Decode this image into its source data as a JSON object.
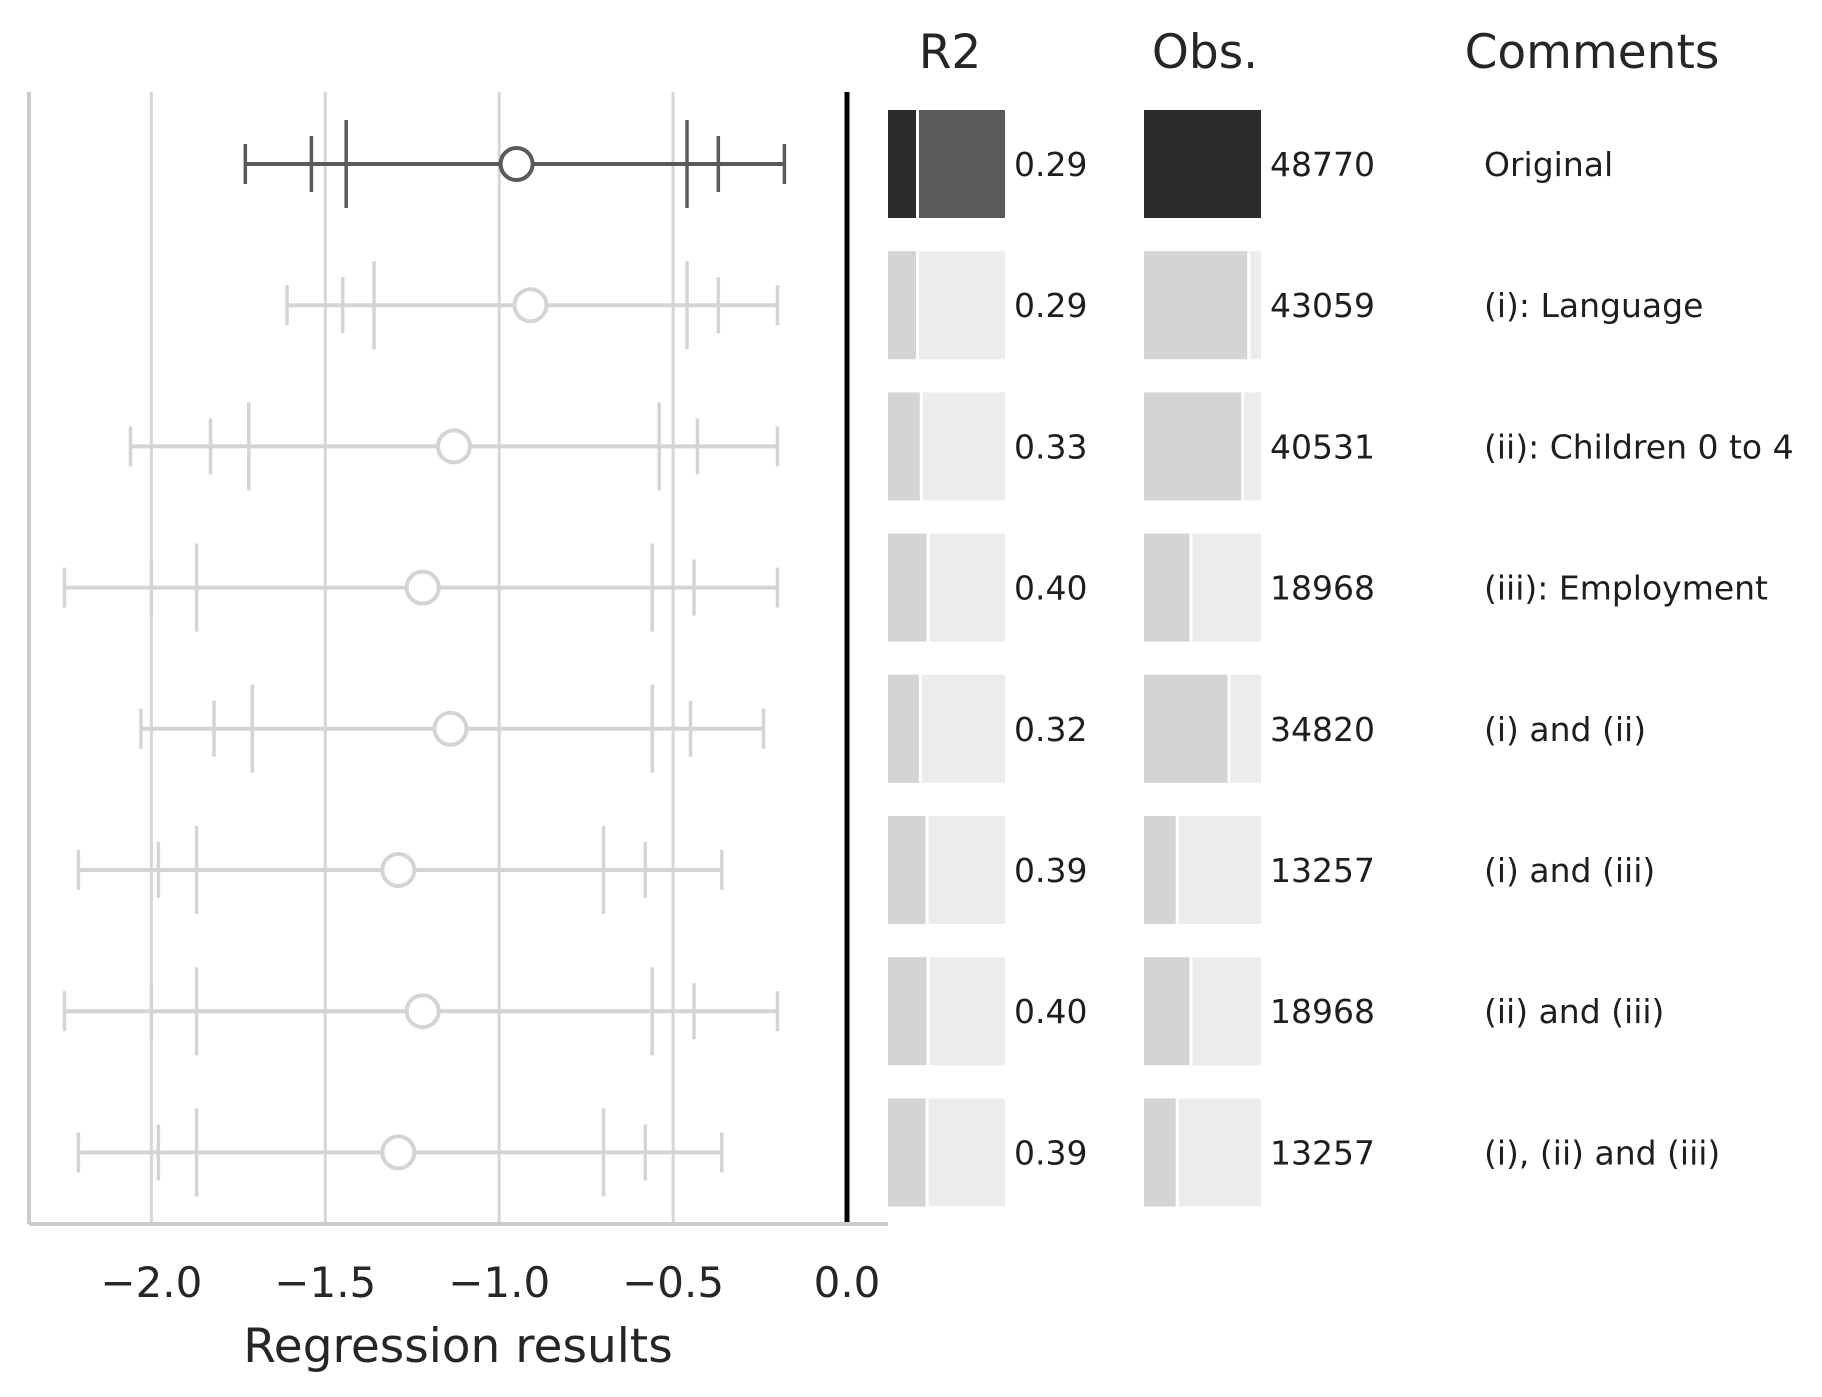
{
  "chart_data": {
    "type": "forest",
    "xlabel": "Regression results",
    "xlim": [
      -2.4,
      0.12
    ],
    "xticks": [
      -2.0,
      -1.5,
      -1.0,
      -0.5,
      0.0
    ],
    "xtick_labels": [
      "−2.0",
      "−1.5",
      "−1.0",
      "−0.5",
      "0.0"
    ],
    "grid": "vertical",
    "reference_line": 0.0,
    "column_headers": {
      "r2": "R2",
      "obs": "Obs.",
      "comments": "Comments"
    },
    "r2_max": 0.4,
    "obs_max": 48770,
    "highlight_color": "#5a5a5a",
    "highlight_dark": "#2b2b2b",
    "muted_color": "#d4d4d4",
    "muted_light": "#ececec",
    "rows": [
      {
        "estimate": -0.95,
        "ci90": [
          -1.44,
          -0.46
        ],
        "ci95": [
          -1.54,
          -0.37
        ],
        "ci99": [
          -1.73,
          -0.18
        ],
        "r2": 0.29,
        "r2_label": "0.29",
        "obs": 48770,
        "obs_label": "48770",
        "comment": "Original",
        "highlight": true
      },
      {
        "estimate": -0.91,
        "ci90": [
          -1.36,
          -0.46
        ],
        "ci95": [
          -1.45,
          -0.37
        ],
        "ci99": [
          -1.61,
          -0.2
        ],
        "r2": 0.29,
        "r2_label": "0.29",
        "obs": 43059,
        "obs_label": "43059",
        "comment": "(i): Language",
        "highlight": false
      },
      {
        "estimate": -1.13,
        "ci90": [
          -1.72,
          -0.54
        ],
        "ci95": [
          -1.83,
          -0.43
        ],
        "ci99": [
          -2.06,
          -0.2
        ],
        "r2": 0.33,
        "r2_label": "0.33",
        "obs": 40531,
        "obs_label": "40531",
        "comment": "(ii): Children 0 to 4",
        "highlight": false
      },
      {
        "estimate": -1.22,
        "ci90": [
          -1.87,
          -0.56
        ],
        "ci95": [
          -2.0,
          -0.44
        ],
        "ci99": [
          -2.25,
          -0.2
        ],
        "r2": 0.4,
        "r2_label": "0.40",
        "obs": 18968,
        "obs_label": "18968",
        "comment": "(iii): Employment",
        "highlight": false
      },
      {
        "estimate": -1.14,
        "ci90": [
          -1.71,
          -0.56
        ],
        "ci95": [
          -1.82,
          -0.45
        ],
        "ci99": [
          -2.03,
          -0.24
        ],
        "r2": 0.32,
        "r2_label": "0.32",
        "obs": 34820,
        "obs_label": "34820",
        "comment": "(i) and (ii)",
        "highlight": false
      },
      {
        "estimate": -1.29,
        "ci90": [
          -1.87,
          -0.7
        ],
        "ci95": [
          -1.98,
          -0.58
        ],
        "ci99": [
          -2.21,
          -0.36
        ],
        "r2": 0.39,
        "r2_label": "0.39",
        "obs": 13257,
        "obs_label": "13257",
        "comment": "(i) and (iii)",
        "highlight": false
      },
      {
        "estimate": -1.22,
        "ci90": [
          -1.87,
          -0.56
        ],
        "ci95": [
          -2.0,
          -0.44
        ],
        "ci99": [
          -2.25,
          -0.2
        ],
        "r2": 0.4,
        "r2_label": "0.40",
        "obs": 18968,
        "obs_label": "18968",
        "comment": "(ii) and (iii)",
        "highlight": false
      },
      {
        "estimate": -1.29,
        "ci90": [
          -1.87,
          -0.7
        ],
        "ci95": [
          -1.98,
          -0.58
        ],
        "ci99": [
          -2.21,
          -0.36
        ],
        "r2": 0.39,
        "r2_label": "0.39",
        "obs": 13257,
        "obs_label": "13257",
        "comment": "(i), (ii) and (iii)",
        "highlight": false
      }
    ]
  }
}
